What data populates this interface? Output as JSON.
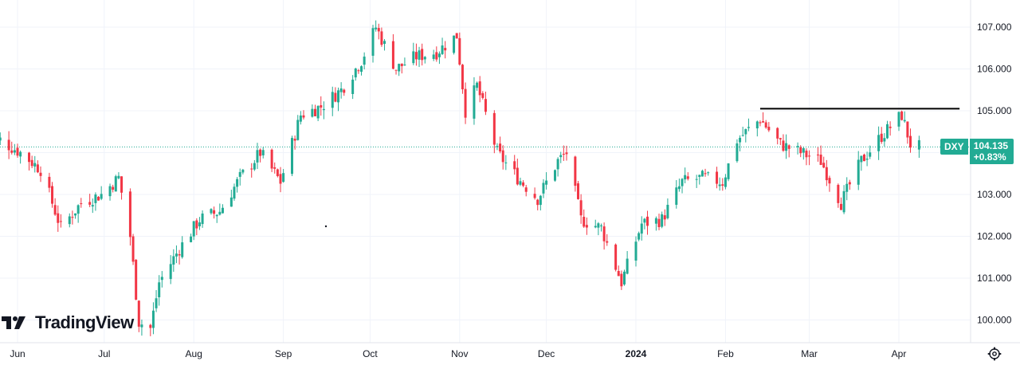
{
  "chart_data": {
    "type": "candlestick",
    "symbol": "DXY",
    "last_price": "104.135",
    "change_percent": "+0.83%",
    "y_ticks": [
      "107.000",
      "106.000",
      "105.000",
      "103.000",
      "102.000",
      "101.000",
      "100.000"
    ],
    "ylim": [
      99.55,
      107.65
    ],
    "x_labels": [
      {
        "label": "Jun",
        "date": "2023-06-01"
      },
      {
        "label": "Jul",
        "date": "2023-07-01"
      },
      {
        "label": "Aug",
        "date": "2023-08-01"
      },
      {
        "label": "Sep",
        "date": "2023-09-01"
      },
      {
        "label": "Oct",
        "date": "2023-10-01"
      },
      {
        "label": "Nov",
        "date": "2023-11-01"
      },
      {
        "label": "Dec",
        "date": "2023-12-01"
      },
      {
        "label": "2024",
        "date": "2024-01-01"
      },
      {
        "label": "Feb",
        "date": "2024-02-01"
      },
      {
        "label": "Mar",
        "date": "2024-03-01"
      },
      {
        "label": "Apr",
        "date": "2024-04-01"
      }
    ],
    "resistance_line": {
      "value": 105.05,
      "from_date": "2024-02-13",
      "to_date": "2024-04-22"
    },
    "price_line": 104.135,
    "colors": {
      "up": "#22ab94",
      "down": "#f23645",
      "resistance": "#000000",
      "badge": "#22ab94"
    },
    "close_path": [
      [
        "2023-05-22",
        104.2
      ],
      [
        "2023-05-26",
        104.3
      ],
      [
        "2023-06-02",
        104.0
      ],
      [
        "2023-06-09",
        103.6
      ],
      [
        "2023-06-16",
        102.2
      ],
      [
        "2023-06-23",
        102.8
      ],
      [
        "2023-06-30",
        103.0
      ],
      [
        "2023-07-06",
        103.4
      ],
      [
        "2023-07-10",
        102.0
      ],
      [
        "2023-07-13",
        99.95
      ],
      [
        "2023-07-17",
        99.8
      ],
      [
        "2023-07-20",
        100.9
      ],
      [
        "2023-07-27",
        101.7
      ],
      [
        "2023-08-03",
        102.4
      ],
      [
        "2023-08-10",
        102.6
      ],
      [
        "2023-08-17",
        103.4
      ],
      [
        "2023-08-24",
        104.0
      ],
      [
        "2023-08-31",
        103.3
      ],
      [
        "2023-09-07",
        104.9
      ],
      [
        "2023-09-14",
        105.1
      ],
      [
        "2023-09-21",
        105.5
      ],
      [
        "2023-09-28",
        106.2
      ],
      [
        "2023-10-03",
        107.0
      ],
      [
        "2023-10-10",
        106.0
      ],
      [
        "2023-10-17",
        106.3
      ],
      [
        "2023-10-24",
        106.4
      ],
      [
        "2023-10-31",
        106.8
      ],
      [
        "2023-11-03",
        105.0
      ],
      [
        "2023-11-07",
        105.6
      ],
      [
        "2023-11-14",
        104.0
      ],
      [
        "2023-11-21",
        103.4
      ],
      [
        "2023-11-28",
        102.9
      ],
      [
        "2023-12-05",
        103.8
      ],
      [
        "2023-12-08",
        104.0
      ],
      [
        "2023-12-13",
        102.4
      ],
      [
        "2023-12-20",
        102.2
      ],
      [
        "2023-12-27",
        100.9
      ],
      [
        "2024-01-03",
        102.3
      ],
      [
        "2024-01-10",
        102.4
      ],
      [
        "2024-01-17",
        103.3
      ],
      [
        "2024-01-24",
        103.4
      ],
      [
        "2024-01-31",
        103.3
      ],
      [
        "2024-02-05",
        104.3
      ],
      [
        "2024-02-13",
        104.8
      ],
      [
        "2024-02-20",
        104.2
      ],
      [
        "2024-02-27",
        104.0
      ],
      [
        "2024-03-05",
        103.8
      ],
      [
        "2024-03-12",
        102.8
      ],
      [
        "2024-03-19",
        103.8
      ],
      [
        "2024-03-26",
        104.4
      ],
      [
        "2024-04-02",
        104.9
      ],
      [
        "2024-04-05",
        104.2
      ],
      [
        "2024-04-08",
        104.135
      ]
    ]
  },
  "branding": {
    "logo_text": "TradingView"
  }
}
